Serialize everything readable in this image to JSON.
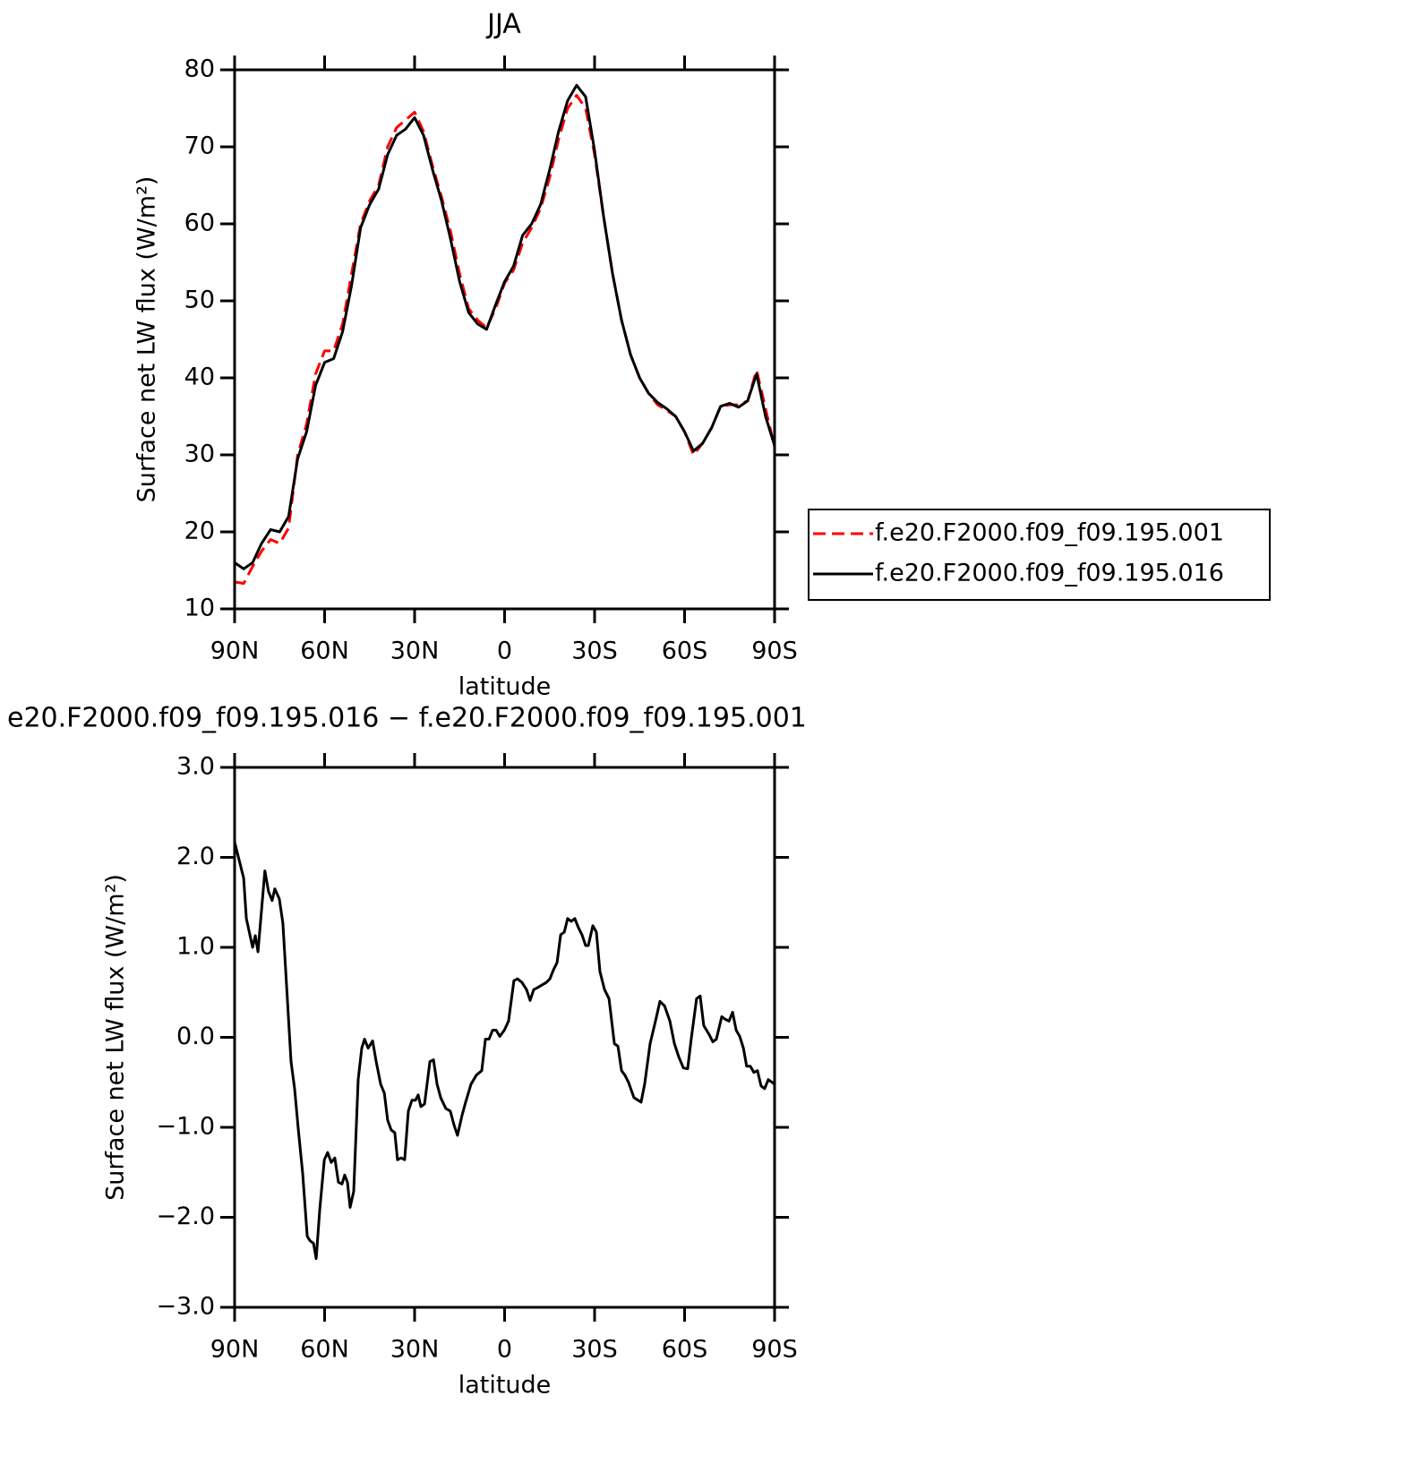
{
  "chart_data": [
    {
      "type": "line",
      "title": "JJA",
      "xlabel": "latitude",
      "ylabel": "Surface net LW flux (W/m²)",
      "x": [
        90,
        87,
        84,
        81,
        78,
        75,
        72,
        69,
        66,
        63,
        60,
        57,
        54,
        51,
        48,
        45,
        42,
        39,
        36,
        33,
        30,
        27,
        24,
        21,
        18,
        15,
        12,
        9,
        6,
        3,
        0,
        -3,
        -6,
        -9,
        -12,
        -15,
        -18,
        -21,
        -24,
        -27,
        -30,
        -33,
        -36,
        -39,
        -42,
        -45,
        -48,
        -51,
        -54,
        -57,
        -60,
        -63,
        -66,
        -69,
        -72,
        -75,
        -78,
        -81,
        -84,
        -87,
        -90
      ],
      "series": [
        {
          "name": "f.e20.F2000.f09_f09.195.001",
          "color": "#ff0000",
          "dash": true,
          "values": [
            13.5,
            13.3,
            15.5,
            17.5,
            19,
            18.5,
            20.5,
            30,
            34,
            40.5,
            43.5,
            43.5,
            47,
            53.5,
            60,
            63,
            65,
            70,
            72.5,
            73.5,
            74.5,
            72,
            67.5,
            63.5,
            59,
            53.5,
            49,
            47.5,
            46.5,
            49,
            52.3,
            54,
            57.5,
            59.5,
            62,
            66,
            71,
            75,
            76.7,
            75,
            69,
            61,
            53.5,
            47.5,
            43,
            40,
            38,
            36.5,
            35.8,
            35,
            33,
            30,
            31.5,
            33.5,
            36.3,
            36.5,
            36.5,
            37,
            41,
            36,
            31
          ]
        },
        {
          "name": "f.e20.F2000.f09_f09.195.016",
          "color": "#000000",
          "dash": false,
          "values": [
            16,
            15.2,
            16,
            18.5,
            20.3,
            20,
            22,
            29.5,
            33,
            39,
            42,
            42.5,
            46,
            52,
            59.5,
            62.5,
            64.5,
            69,
            71.5,
            72.3,
            73.8,
            71.5,
            67,
            63,
            58,
            52.5,
            48.5,
            47,
            46.3,
            49.5,
            52.5,
            54.5,
            58.5,
            60,
            62.5,
            67,
            72,
            76,
            78,
            76.5,
            69.5,
            61,
            53.5,
            47.5,
            43,
            40,
            38,
            36.8,
            36,
            35,
            33,
            30.5,
            31.5,
            33.5,
            36.3,
            36.7,
            36.2,
            37,
            40.5,
            35,
            31.2
          ]
        }
      ],
      "xlim": [
        90,
        -90
      ],
      "xticks": [
        {
          "value": 90,
          "label": "90N"
        },
        {
          "value": 60,
          "label": "60N"
        },
        {
          "value": 30,
          "label": "30N"
        },
        0,
        {
          "value": -30,
          "label": "30S"
        },
        {
          "value": -60,
          "label": "60S"
        },
        {
          "value": -90,
          "label": "90S"
        }
      ],
      "ylim": [
        10,
        80
      ],
      "yticks": [
        10,
        20,
        30,
        40,
        50,
        60,
        70,
        80
      ],
      "legend": "outside-right"
    },
    {
      "type": "line",
      "title": "e20.F2000.f09_f09.195.016 − f.e20.F2000.f09_f09.195.001",
      "xlabel": "latitude",
      "ylabel": "Surface net LW flux (W/m²)",
      "x": [
        90,
        87,
        86.1,
        84,
        83.1,
        82.2,
        79.9,
        78.7,
        77.5,
        76.6,
        75.1,
        73.9,
        72.7,
        71.2,
        70,
        68.8,
        67.3,
        65.8,
        64.9,
        63.7,
        62.8,
        61.6,
        60.1,
        59,
        57.8,
        56.6,
        55.4,
        54.2,
        53.3,
        52.4,
        51.5,
        50.3,
        48.8,
        47.6,
        46.7,
        45.5,
        44,
        42.8,
        41.3,
        40.1,
        39,
        37.8,
        36.6,
        35.7,
        34.5,
        33.3,
        32.1,
        30.9,
        29.7,
        28.8,
        27.9,
        26.7,
        24.9,
        23.7,
        22.5,
        21.3,
        19.6,
        18.1,
        16.9,
        15.7,
        14.2,
        13,
        11.2,
        9.4,
        7.6,
        6.4,
        5.2,
        4,
        2.8,
        1.6,
        0.1,
        -1.3,
        -3.1,
        -4.3,
        -5.8,
        -7.3,
        -8.5,
        -9.7,
        -10.9,
        -12.4,
        -13.9,
        -15.1,
        -16.3,
        -17.5,
        -18.7,
        -19.9,
        -21,
        -22.2,
        -23.4,
        -24.6,
        -25.8,
        -27,
        -27.9,
        -29.4,
        -30.6,
        -31.8,
        -33.3,
        -34.8,
        -36.6,
        -37.8,
        -39,
        -40.1,
        -41.3,
        -43.1,
        -45.5,
        -46.7,
        -48.5,
        -50.3,
        -51.8,
        -53.3,
        -55.1,
        -56.6,
        -58.1,
        -59.6,
        -61,
        -62.2,
        -64,
        -65.2,
        -66.4,
        -68.2,
        -69.4,
        -70.6,
        -72.4,
        -73.6,
        -74.8,
        -76,
        -77.2,
        -78.4,
        -79.6,
        -80.7,
        -81.9,
        -83.1,
        -84.3,
        -85.5,
        -86.7,
        -87.9,
        -90
      ],
      "values": [
        2.17,
        1.77,
        1.32,
        1.0,
        1.13,
        0.95,
        1.85,
        1.62,
        1.52,
        1.65,
        1.54,
        1.27,
        0.58,
        -0.27,
        -0.57,
        -1.01,
        -1.51,
        -2.21,
        -2.26,
        -2.29,
        -2.46,
        -1.91,
        -1.36,
        -1.28,
        -1.39,
        -1.34,
        -1.61,
        -1.63,
        -1.53,
        -1.61,
        -1.89,
        -1.71,
        -0.47,
        -0.12,
        -0.02,
        -0.12,
        -0.04,
        -0.27,
        -0.52,
        -0.62,
        -0.92,
        -1.03,
        -1.06,
        -1.36,
        -1.34,
        -1.36,
        -0.82,
        -0.7,
        -0.7,
        -0.64,
        -0.77,
        -0.74,
        -0.27,
        -0.25,
        -0.52,
        -0.67,
        -0.79,
        -0.82,
        -0.97,
        -1.09,
        -0.87,
        -0.72,
        -0.52,
        -0.42,
        -0.37,
        -0.02,
        -0.02,
        0.08,
        0.08,
        0.01,
        0.08,
        0.18,
        0.63,
        0.65,
        0.61,
        0.53,
        0.41,
        0.53,
        0.55,
        0.58,
        0.61,
        0.65,
        0.75,
        0.83,
        1.14,
        1.17,
        1.32,
        1.29,
        1.32,
        1.22,
        1.14,
        1.02,
        1.02,
        1.24,
        1.17,
        0.73,
        0.53,
        0.43,
        -0.07,
        -0.1,
        -0.37,
        -0.42,
        -0.5,
        -0.67,
        -0.72,
        -0.52,
        -0.07,
        0.18,
        0.4,
        0.35,
        0.18,
        -0.07,
        -0.22,
        -0.34,
        -0.35,
        -0.02,
        0.43,
        0.46,
        0.13,
        0.03,
        -0.05,
        -0.02,
        0.23,
        0.2,
        0.18,
        0.28,
        0.08,
        0.01,
        -0.12,
        -0.32,
        -0.32,
        -0.39,
        -0.37,
        -0.54,
        -0.57,
        -0.47,
        -0.52
      ],
      "color": "#000000",
      "xlim": [
        90,
        -90
      ],
      "xticks": [
        {
          "value": 90,
          "label": "90N"
        },
        {
          "value": 60,
          "label": "60N"
        },
        {
          "value": 30,
          "label": "30N"
        },
        0,
        {
          "value": -30,
          "label": "30S"
        },
        {
          "value": -60,
          "label": "60S"
        },
        {
          "value": -90,
          "label": "90S"
        }
      ],
      "ylim": [
        -3,
        3
      ],
      "yticks": [
        {
          "value": -3,
          "label": "−3.0"
        },
        {
          "value": -2,
          "label": "−2.0"
        },
        {
          "value": -1,
          "label": "−1.0"
        },
        {
          "value": 0,
          "label": "0.0"
        },
        {
          "value": 1,
          "label": "1.0"
        },
        {
          "value": 2,
          "label": "2.0"
        },
        {
          "value": 3,
          "label": "3.0"
        }
      ]
    }
  ]
}
